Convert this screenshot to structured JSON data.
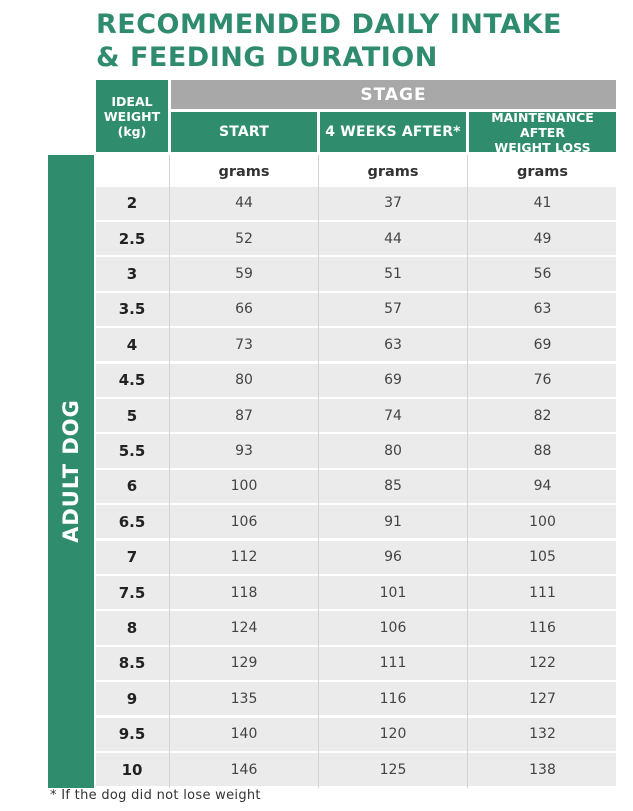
{
  "title": {
    "line1": "RECOMMENDED DAILY INTAKE",
    "line2": "& FEEDING DURATION"
  },
  "header": {
    "ideal_weight": [
      "IDEAL",
      "WEIGHT",
      "(kg)"
    ],
    "stage": "STAGE",
    "start": "START",
    "weeks_after": "4 WEEKS AFTER*",
    "maintenance": [
      "MAINTENANCE AFTER",
      "WEIGHT LOSS"
    ]
  },
  "units": {
    "start": "grams",
    "weeks_after": "grams",
    "maintenance": "grams"
  },
  "side_label": "ADULT DOG",
  "rows": [
    {
      "weight": "2",
      "start": "44",
      "after": "37",
      "maint": "41"
    },
    {
      "weight": "2.5",
      "start": "52",
      "after": "44",
      "maint": "49"
    },
    {
      "weight": "3",
      "start": "59",
      "after": "51",
      "maint": "56"
    },
    {
      "weight": "3.5",
      "start": "66",
      "after": "57",
      "maint": "63"
    },
    {
      "weight": "4",
      "start": "73",
      "after": "63",
      "maint": "69"
    },
    {
      "weight": "4.5",
      "start": "80",
      "after": "69",
      "maint": "76"
    },
    {
      "weight": "5",
      "start": "87",
      "after": "74",
      "maint": "82"
    },
    {
      "weight": "5.5",
      "start": "93",
      "after": "80",
      "maint": "88"
    },
    {
      "weight": "6",
      "start": "100",
      "after": "85",
      "maint": "94"
    },
    {
      "weight": "6.5",
      "start": "106",
      "after": "91",
      "maint": "100"
    },
    {
      "weight": "7",
      "start": "112",
      "after": "96",
      "maint": "105"
    },
    {
      "weight": "7.5",
      "start": "118",
      "after": "101",
      "maint": "111"
    },
    {
      "weight": "8",
      "start": "124",
      "after": "106",
      "maint": "116"
    },
    {
      "weight": "8.5",
      "start": "129",
      "after": "111",
      "maint": "122"
    },
    {
      "weight": "9",
      "start": "135",
      "after": "116",
      "maint": "127"
    },
    {
      "weight": "9.5",
      "start": "140",
      "after": "120",
      "maint": "132"
    },
    {
      "weight": "10",
      "start": "146",
      "after": "125",
      "maint": "138"
    }
  ],
  "footnote": "* If the dog did not lose weight"
}
